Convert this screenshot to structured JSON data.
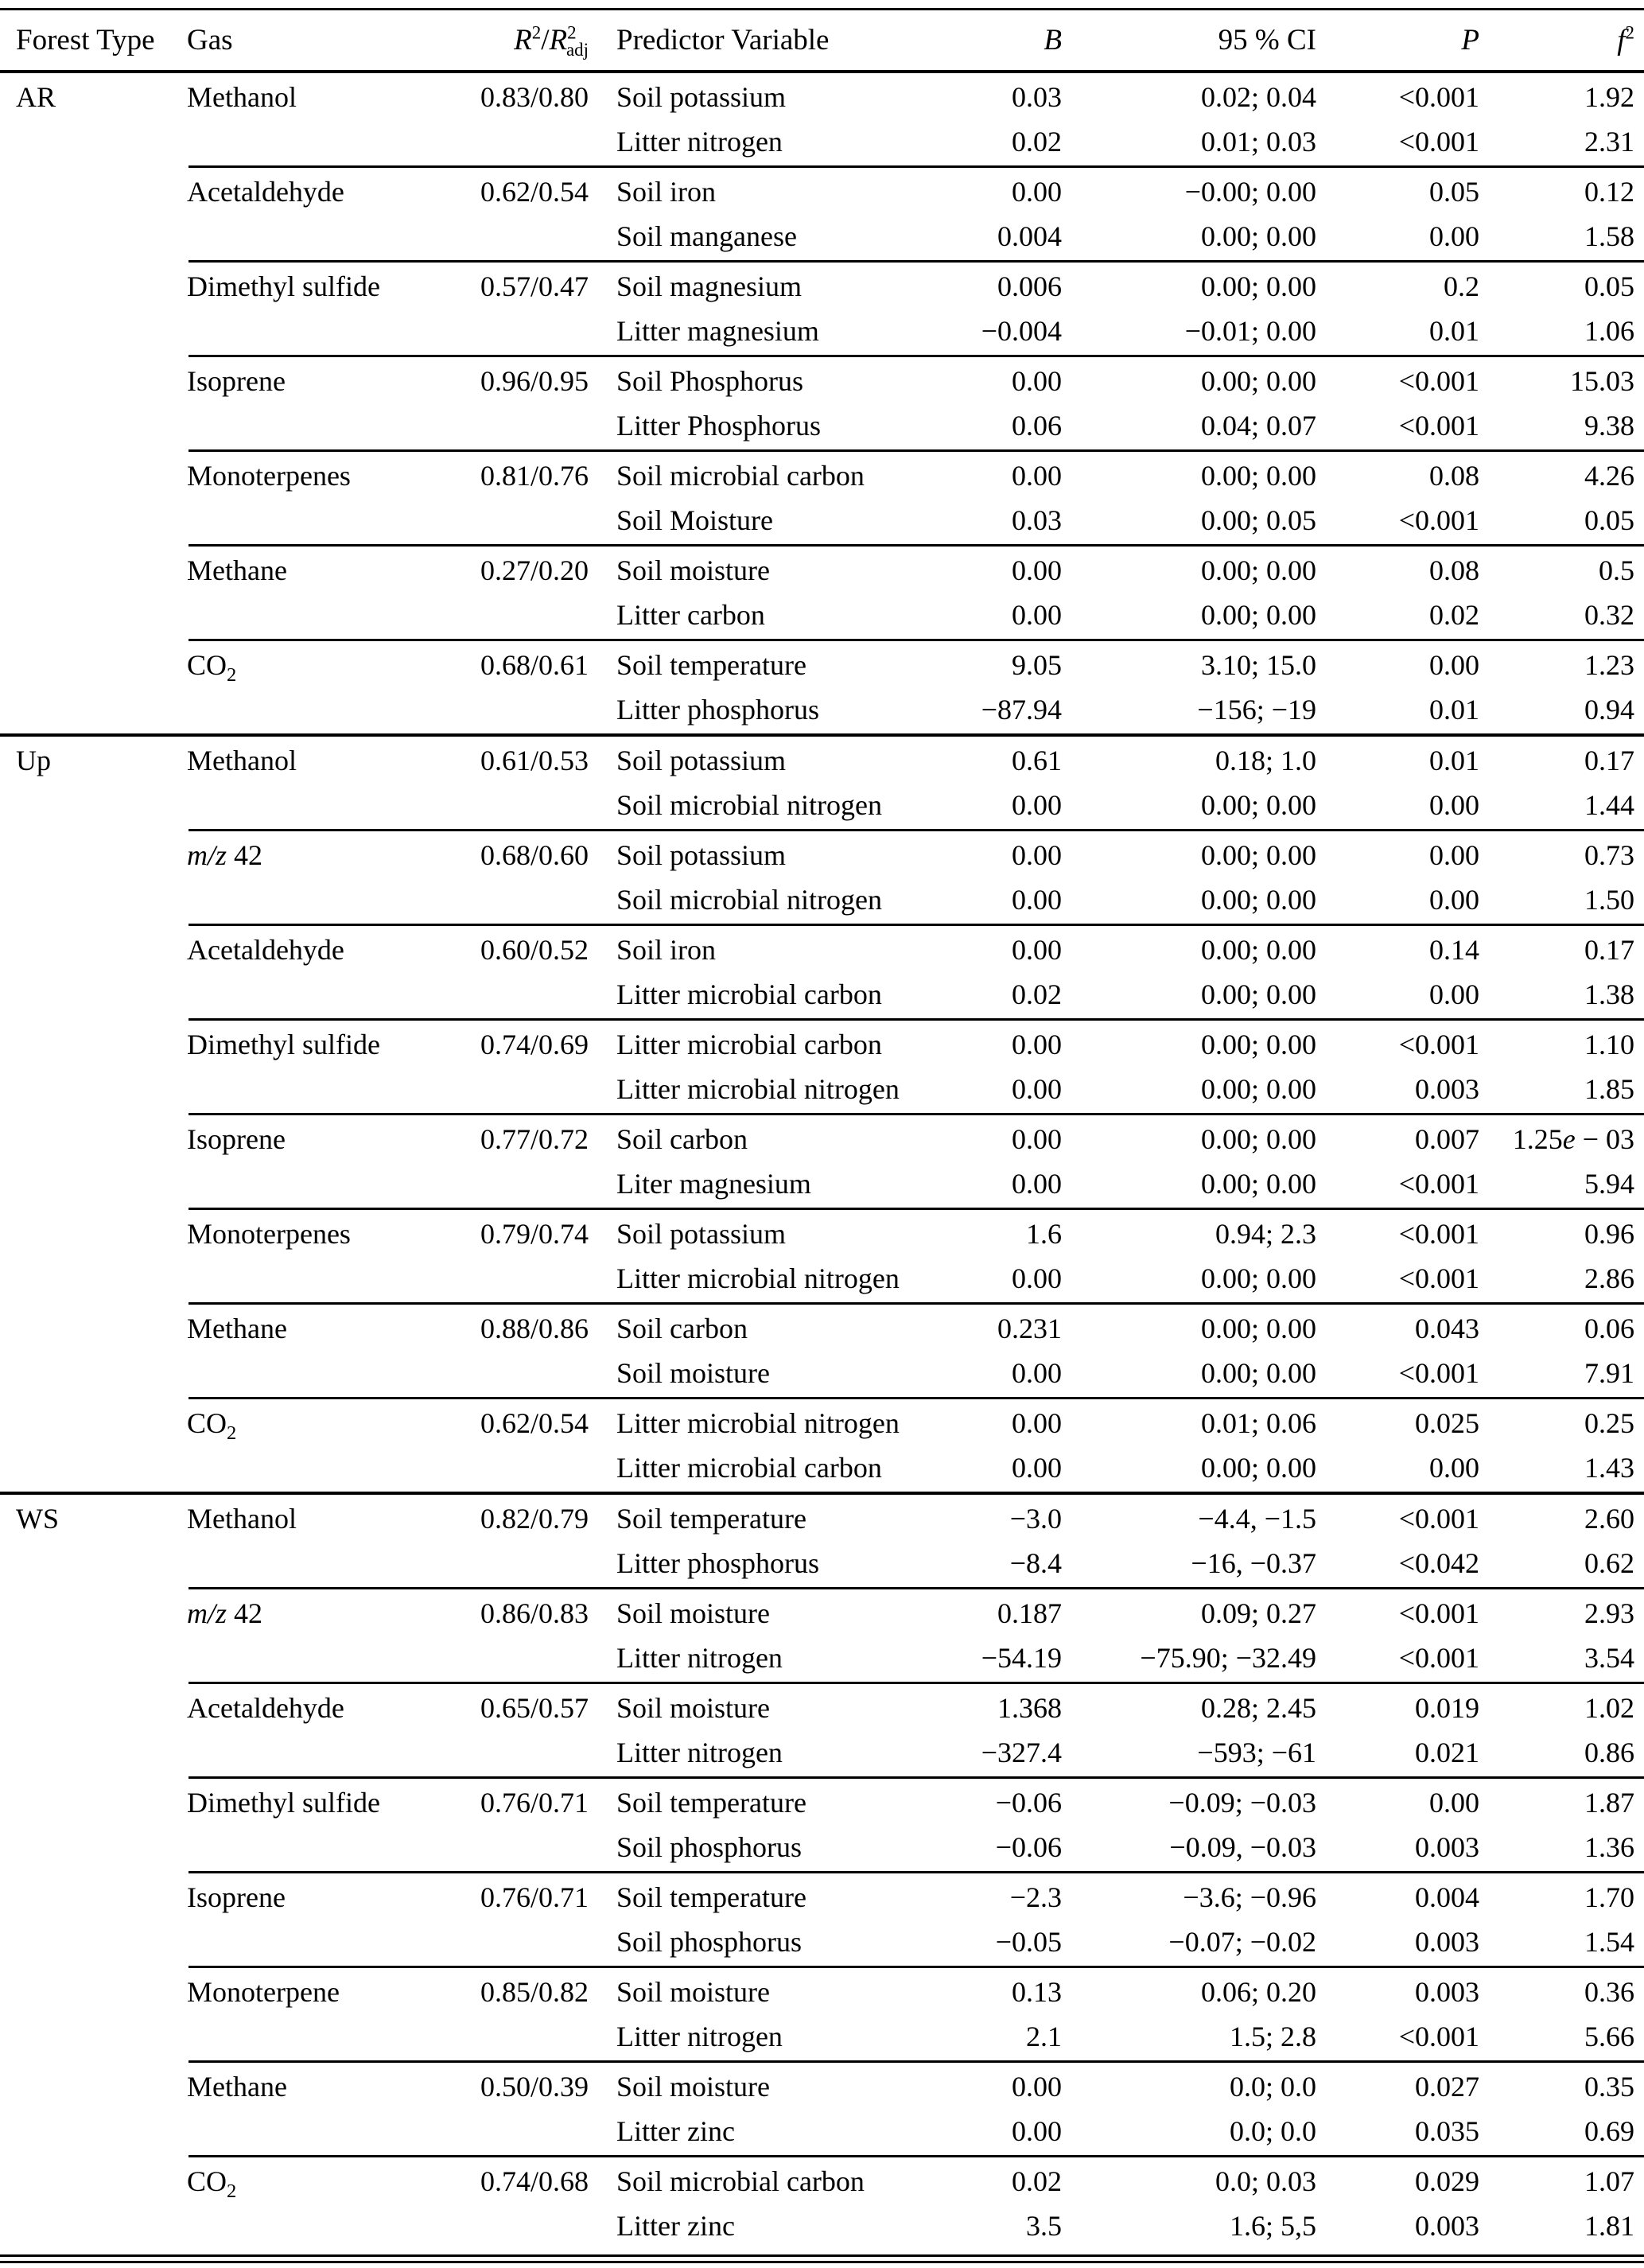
{
  "table": {
    "columns": [
      {
        "id": "forest",
        "label": "Forest Type"
      },
      {
        "id": "gas",
        "label": "Gas"
      },
      {
        "id": "r2",
        "label": "R2/R2adj"
      },
      {
        "id": "predictor",
        "label": "Predictor Variable"
      },
      {
        "id": "b",
        "label": "B"
      },
      {
        "id": "ci",
        "label": "95 % CI"
      },
      {
        "id": "p",
        "label": "P"
      },
      {
        "id": "f2",
        "label": "f2"
      }
    ],
    "sections": [
      {
        "forest_type": "AR",
        "groups": [
          {
            "gas": "Methanol",
            "r2": "0.83/0.80",
            "rows": [
              {
                "predictor": "Soil potassium",
                "b": "0.03",
                "ci": "0.02; 0.04",
                "p": "<0.001",
                "f2": "1.92"
              },
              {
                "predictor": "Litter nitrogen",
                "b": "0.02",
                "ci": "0.01; 0.03",
                "p": "<0.001",
                "f2": "2.31"
              }
            ]
          },
          {
            "gas": "Acetaldehyde",
            "r2": "0.62/0.54",
            "rows": [
              {
                "predictor": "Soil iron",
                "b": "0.00",
                "ci": "−0.00; 0.00",
                "p": "0.05",
                "f2": "0.12"
              },
              {
                "predictor": "Soil manganese",
                "b": "0.004",
                "ci": "0.00; 0.00",
                "p": "0.00",
                "f2": "1.58"
              }
            ]
          },
          {
            "gas": "Dimethyl sulfide",
            "r2": "0.57/0.47",
            "rows": [
              {
                "predictor": "Soil magnesium",
                "b": "0.006",
                "ci": "0.00; 0.00",
                "p": "0.2",
                "f2": "0.05"
              },
              {
                "predictor": "Litter magnesium",
                "b": "−0.004",
                "ci": "−0.01; 0.00",
                "p": "0.01",
                "f2": "1.06"
              }
            ]
          },
          {
            "gas": "Isoprene",
            "r2": "0.96/0.95",
            "rows": [
              {
                "predictor": "Soil Phosphorus",
                "b": "0.00",
                "ci": "0.00; 0.00",
                "p": "<0.001",
                "f2": "15.03"
              },
              {
                "predictor": "Litter Phosphorus",
                "b": "0.06",
                "ci": "0.04; 0.07",
                "p": "<0.001",
                "f2": "9.38"
              }
            ]
          },
          {
            "gas": "Monoterpenes",
            "r2": "0.81/0.76",
            "rows": [
              {
                "predictor": "Soil microbial carbon",
                "b": "0.00",
                "ci": "0.00; 0.00",
                "p": "0.08",
                "f2": "4.26"
              },
              {
                "predictor": "Soil Moisture",
                "b": "0.03",
                "ci": "0.00; 0.05",
                "p": "<0.001",
                "f2": "0.05"
              }
            ]
          },
          {
            "gas": "Methane",
            "r2": "0.27/0.20",
            "rows": [
              {
                "predictor": "Soil moisture",
                "b": "0.00",
                "ci": "0.00; 0.00",
                "p": "0.08",
                "f2": "0.5"
              },
              {
                "predictor": "Litter carbon",
                "b": "0.00",
                "ci": "0.00; 0.00",
                "p": "0.02",
                "f2": "0.32"
              }
            ]
          },
          {
            "gas": "CO2",
            "r2": "0.68/0.61",
            "rows": [
              {
                "predictor": "Soil temperature",
                "b": "9.05",
                "ci": "3.10; 15.0",
                "p": "0.00",
                "f2": "1.23"
              },
              {
                "predictor": "Litter phosphorus",
                "b": "−87.94",
                "ci": "−156; −19",
                "p": "0.01",
                "f2": "0.94"
              }
            ]
          }
        ]
      },
      {
        "forest_type": "Up",
        "groups": [
          {
            "gas": "Methanol",
            "r2": "0.61/0.53",
            "rows": [
              {
                "predictor": "Soil potassium",
                "b": "0.61",
                "ci": "0.18; 1.0",
                "p": "0.01",
                "f2": "0.17"
              },
              {
                "predictor": "Soil microbial nitrogen",
                "b": "0.00",
                "ci": "0.00; 0.00",
                "p": "0.00",
                "f2": "1.44"
              }
            ]
          },
          {
            "gas": "m/z 42",
            "r2": "0.68/0.60",
            "rows": [
              {
                "predictor": "Soil potassium",
                "b": "0.00",
                "ci": "0.00; 0.00",
                "p": "0.00",
                "f2": "0.73"
              },
              {
                "predictor": "Soil microbial nitrogen",
                "b": "0.00",
                "ci": "0.00; 0.00",
                "p": "0.00",
                "f2": "1.50"
              }
            ]
          },
          {
            "gas": "Acetaldehyde",
            "r2": "0.60/0.52",
            "rows": [
              {
                "predictor": "Soil iron",
                "b": "0.00",
                "ci": "0.00; 0.00",
                "p": "0.14",
                "f2": "0.17"
              },
              {
                "predictor": "Litter microbial carbon",
                "b": "0.02",
                "ci": "0.00; 0.00",
                "p": "0.00",
                "f2": "1.38"
              }
            ]
          },
          {
            "gas": "Dimethyl sulfide",
            "r2": "0.74/0.69",
            "rows": [
              {
                "predictor": "Litter microbial carbon",
                "b": "0.00",
                "ci": "0.00; 0.00",
                "p": "<0.001",
                "f2": "1.10"
              },
              {
                "predictor": "Litter microbial nitrogen",
                "b": "0.00",
                "ci": "0.00; 0.00",
                "p": "0.003",
                "f2": "1.85"
              }
            ]
          },
          {
            "gas": "Isoprene",
            "r2": "0.77/0.72",
            "rows": [
              {
                "predictor": "Soil carbon",
                "b": "0.00",
                "ci": "0.00; 0.00",
                "p": "0.007",
                "f2": "1.25e − 03"
              },
              {
                "predictor": "Liter magnesium",
                "b": "0.00",
                "ci": "0.00; 0.00",
                "p": "<0.001",
                "f2": "5.94"
              }
            ]
          },
          {
            "gas": "Monoterpenes",
            "r2": "0.79/0.74",
            "rows": [
              {
                "predictor": "Soil potassium",
                "b": "1.6",
                "ci": "0.94; 2.3",
                "p": "<0.001",
                "f2": "0.96"
              },
              {
                "predictor": "Litter microbial nitrogen",
                "b": "0.00",
                "ci": "0.00; 0.00",
                "p": "<0.001",
                "f2": "2.86"
              }
            ]
          },
          {
            "gas": "Methane",
            "r2": "0.88/0.86",
            "rows": [
              {
                "predictor": "Soil carbon",
                "b": "0.231",
                "ci": "0.00; 0.00",
                "p": "0.043",
                "f2": "0.06"
              },
              {
                "predictor": "Soil moisture",
                "b": "0.00",
                "ci": "0.00; 0.00",
                "p": "<0.001",
                "f2": "7.91"
              }
            ]
          },
          {
            "gas": "CO2",
            "r2": "0.62/0.54",
            "rows": [
              {
                "predictor": "Litter microbial nitrogen",
                "b": "0.00",
                "ci": "0.01; 0.06",
                "p": "0.025",
                "f2": "0.25"
              },
              {
                "predictor": "Litter microbial carbon",
                "b": "0.00",
                "ci": "0.00; 0.00",
                "p": "0.00",
                "f2": "1.43"
              }
            ]
          }
        ]
      },
      {
        "forest_type": "WS",
        "groups": [
          {
            "gas": "Methanol",
            "r2": "0.82/0.79",
            "rows": [
              {
                "predictor": "Soil temperature",
                "b": "−3.0",
                "ci": "−4.4, −1.5",
                "p": "<0.001",
                "f2": "2.60"
              },
              {
                "predictor": "Litter phosphorus",
                "b": "−8.4",
                "ci": "−16, −0.37",
                "p": "<0.042",
                "f2": "0.62"
              }
            ]
          },
          {
            "gas": "m/z 42",
            "r2": "0.86/0.83",
            "rows": [
              {
                "predictor": "Soil moisture",
                "b": "0.187",
                "ci": "0.09; 0.27",
                "p": "<0.001",
                "f2": "2.93"
              },
              {
                "predictor": "Litter nitrogen",
                "b": "−54.19",
                "ci": "−75.90; −32.49",
                "p": "<0.001",
                "f2": "3.54"
              }
            ]
          },
          {
            "gas": "Acetaldehyde",
            "r2": "0.65/0.57",
            "rows": [
              {
                "predictor": "Soil moisture",
                "b": "1.368",
                "ci": "0.28; 2.45",
                "p": "0.019",
                "f2": "1.02"
              },
              {
                "predictor": "Litter nitrogen",
                "b": "−327.4",
                "ci": "−593; −61",
                "p": "0.021",
                "f2": "0.86"
              }
            ]
          },
          {
            "gas": "Dimethyl sulfide",
            "r2": "0.76/0.71",
            "rows": [
              {
                "predictor": "Soil temperature",
                "b": "−0.06",
                "ci": "−0.09; −0.03",
                "p": "0.00",
                "f2": "1.87"
              },
              {
                "predictor": "Soil phosphorus",
                "b": "−0.06",
                "ci": "−0.09, −0.03",
                "p": "0.003",
                "f2": "1.36"
              }
            ]
          },
          {
            "gas": "Isoprene",
            "r2": "0.76/0.71",
            "rows": [
              {
                "predictor": "Soil temperature",
                "b": "−2.3",
                "ci": "−3.6; −0.96",
                "p": "0.004",
                "f2": "1.70"
              },
              {
                "predictor": "Soil phosphorus",
                "b": "−0.05",
                "ci": "−0.07; −0.02",
                "p": "0.003",
                "f2": "1.54"
              }
            ]
          },
          {
            "gas": "Monoterpene",
            "r2": "0.85/0.82",
            "rows": [
              {
                "predictor": "Soil moisture",
                "b": "0.13",
                "ci": "0.06; 0.20",
                "p": "0.003",
                "f2": "0.36"
              },
              {
                "predictor": "Litter nitrogen",
                "b": "2.1",
                "ci": "1.5; 2.8",
                "p": "<0.001",
                "f2": "5.66"
              }
            ]
          },
          {
            "gas": "Methane",
            "r2": "0.50/0.39",
            "rows": [
              {
                "predictor": "Soil moisture",
                "b": "0.00",
                "ci": "0.0; 0.0",
                "p": "0.027",
                "f2": "0.35"
              },
              {
                "predictor": "Litter zinc",
                "b": "0.00",
                "ci": "0.0; 0.0",
                "p": "0.035",
                "f2": "0.69"
              }
            ]
          },
          {
            "gas": "CO2",
            "r2": "0.74/0.68",
            "rows": [
              {
                "predictor": "Soil microbial carbon",
                "b": "0.02",
                "ci": "0.0; 0.03",
                "p": "0.029",
                "f2": "1.07"
              },
              {
                "predictor": "Litter zinc",
                "b": "3.5",
                "ci": "1.6; 5,5",
                "p": "0.003",
                "f2": "1.81"
              }
            ]
          }
        ]
      }
    ]
  }
}
